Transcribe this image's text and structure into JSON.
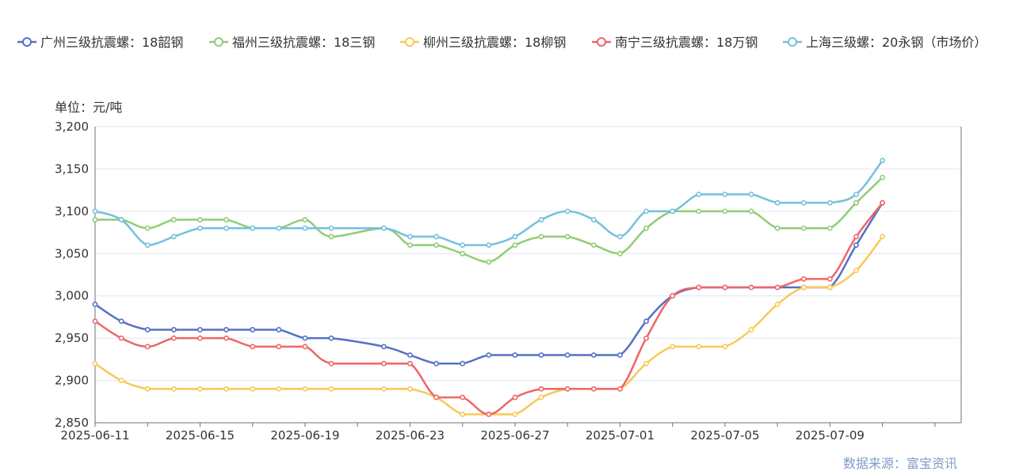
{
  "chart_data": {
    "type": "line",
    "ylabel": "单位：元/吨",
    "source": "数据来源：富宝资讯",
    "x_ticks": [
      "2025-06-11",
      "2025-06-15",
      "2025-06-19",
      "2025-06-23",
      "2025-06-27",
      "2025-07-01",
      "2025-07-05",
      "2025-07-09"
    ],
    "y_ticks": [
      "2,850",
      "2,900",
      "2,950",
      "3,000",
      "3,050",
      "3,100",
      "3,150",
      "3,200"
    ],
    "ylim": [
      2850,
      3200
    ],
    "xlim": [
      "2025-06-11",
      "2025-07-14"
    ],
    "grid": true,
    "legend_position": "top",
    "x": [
      "2025-06-11",
      "2025-06-12",
      "2025-06-13",
      "2025-06-14",
      "2025-06-15",
      "2025-06-16",
      "2025-06-17",
      "2025-06-18",
      "2025-06-19",
      "2025-06-20",
      "2025-06-22",
      "2025-06-23",
      "2025-06-24",
      "2025-06-25",
      "2025-06-26",
      "2025-06-27",
      "2025-06-28",
      "2025-06-29",
      "2025-06-30",
      "2025-07-01",
      "2025-07-02",
      "2025-07-03",
      "2025-07-04",
      "2025-07-05",
      "2025-07-06",
      "2025-07-07",
      "2025-07-08",
      "2025-07-09",
      "2025-07-10",
      "2025-07-11"
    ],
    "series": [
      {
        "name": "广州三级抗震螺：18韶钢",
        "color": "#5470c6",
        "values": [
          2990,
          2970,
          2960,
          2960,
          2960,
          2960,
          2960,
          2960,
          2950,
          2950,
          2940,
          2930,
          2920,
          2920,
          2930,
          2930,
          2930,
          2930,
          2930,
          2930,
          2970,
          3000,
          3010,
          3010,
          3010,
          3010,
          3010,
          3010,
          3060,
          3110
        ]
      },
      {
        "name": "福州三级抗震螺：18三钢",
        "color": "#91cc75",
        "values": [
          3090,
          3090,
          3080,
          3090,
          3090,
          3090,
          3080,
          3080,
          3090,
          3070,
          3080,
          3060,
          3060,
          3050,
          3040,
          3060,
          3070,
          3070,
          3060,
          3050,
          3080,
          3100,
          3100,
          3100,
          3100,
          3080,
          3080,
          3080,
          3110,
          3140
        ]
      },
      {
        "name": "柳州三级抗震螺：18柳钢",
        "color": "#fac858",
        "values": [
          2920,
          2900,
          2890,
          2890,
          2890,
          2890,
          2890,
          2890,
          2890,
          2890,
          2890,
          2890,
          2880,
          2860,
          2860,
          2860,
          2880,
          2890,
          2890,
          2890,
          2920,
          2940,
          2940,
          2940,
          2960,
          2990,
          3010,
          3010,
          3030,
          3070
        ]
      },
      {
        "name": "南宁三级抗震螺：18万钢",
        "color": "#ee6666",
        "values": [
          2970,
          2950,
          2940,
          2950,
          2950,
          2950,
          2940,
          2940,
          2940,
          2920,
          2920,
          2920,
          2880,
          2880,
          2860,
          2880,
          2890,
          2890,
          2890,
          2890,
          2950,
          3000,
          3010,
          3010,
          3010,
          3010,
          3020,
          3020,
          3070,
          3110
        ]
      },
      {
        "name": "上海三级螺：20永钢（市场价）",
        "color": "#73c0de",
        "values": [
          3100,
          3090,
          3060,
          3070,
          3080,
          3080,
          3080,
          3080,
          3080,
          3080,
          3080,
          3070,
          3070,
          3060,
          3060,
          3070,
          3090,
          3100,
          3090,
          3070,
          3100,
          3100,
          3120,
          3120,
          3120,
          3110,
          3110,
          3110,
          3120,
          3160
        ]
      }
    ]
  }
}
